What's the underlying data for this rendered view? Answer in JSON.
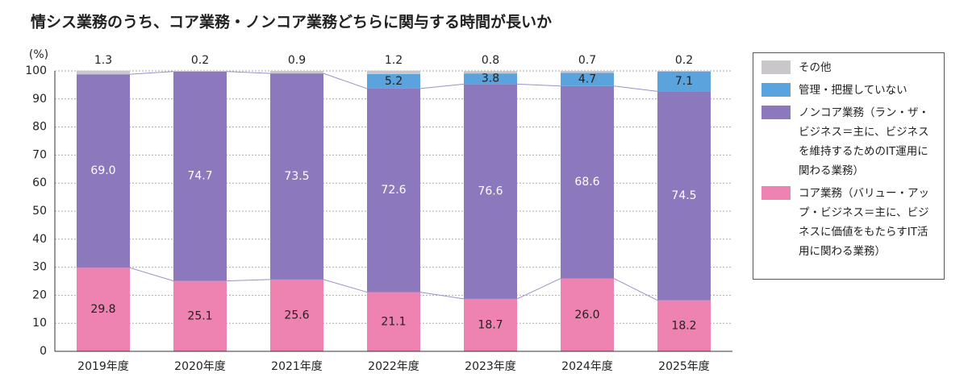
{
  "chart_data": {
    "type": "stacked_bar",
    "title": "情シス業務のうち、コア業務・ノンコア業務どちらに関与する時間が長いか",
    "y_unit": "(%)",
    "categories": [
      "2019年度",
      "2020年度",
      "2021年度",
      "2022年度",
      "2023年度",
      "2024年度",
      "2025年度"
    ],
    "series": [
      {
        "name": "コア業務（バリュー・アップ・ビジネス＝主に、ビジネスに価値をもたらすIT活用に関わる業務）",
        "color": "#ee82b0",
        "values": [
          29.8,
          25.1,
          25.6,
          21.1,
          18.7,
          26.0,
          18.2
        ],
        "value_labels": [
          "29.8",
          "25.1",
          "25.6",
          "21.1",
          "18.7",
          "26.0",
          "18.2"
        ]
      },
      {
        "name": "ノンコア業務（ラン・ザ・ビジネス＝主に、ビジネスを維持するためのIT運用に関わる業務）",
        "color": "#8b78bd",
        "values": [
          69.0,
          74.7,
          73.5,
          72.6,
          76.6,
          68.6,
          74.5
        ],
        "value_labels": [
          "69.0",
          "74.7",
          "73.5",
          "72.6",
          "76.6",
          "68.6",
          "74.5"
        ]
      },
      {
        "name": "管理・把握していない",
        "color": "#5ba3dc",
        "values": [
          null,
          null,
          null,
          5.2,
          3.8,
          4.7,
          7.1
        ],
        "value_labels": [
          null,
          null,
          null,
          "5.2",
          "3.8",
          "4.7",
          "7.1"
        ]
      },
      {
        "name": "その他",
        "color": "#c9c7ca",
        "values": [
          1.3,
          0.2,
          0.9,
          1.2,
          0.8,
          0.7,
          0.2
        ],
        "value_labels": [
          "1.3",
          "0.2",
          "0.9",
          "1.2",
          "0.8",
          "0.7",
          "0.2"
        ]
      }
    ],
    "ylim": [
      0,
      100
    ],
    "yticks": [
      0,
      10,
      20,
      30,
      40,
      50,
      60,
      70,
      80,
      90,
      100
    ],
    "grid": true
  }
}
